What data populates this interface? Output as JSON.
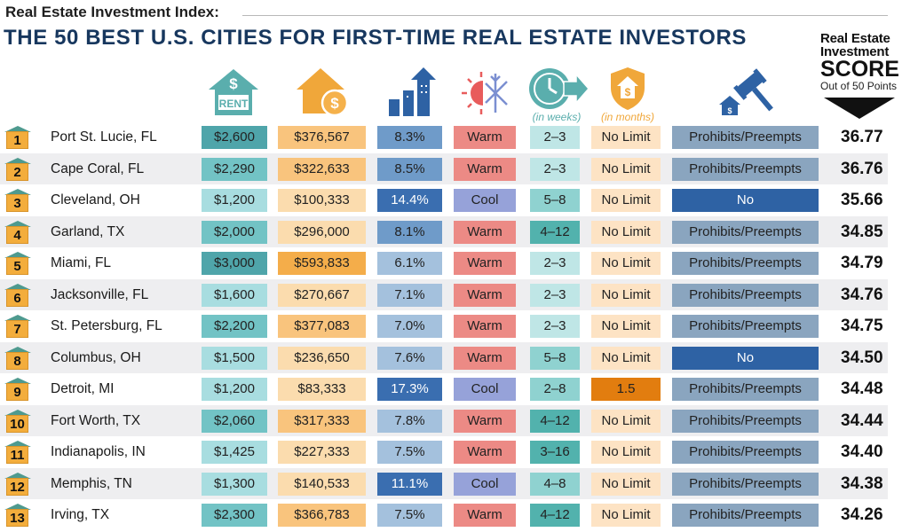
{
  "header": {
    "kicker": "Real Estate Investment Index:",
    "title": "THE 50 BEST U.S. CITIES FOR FIRST-TIME REAL ESTATE INVESTORS",
    "score_line1": "Real Estate",
    "score_line2": "Investment",
    "score_line3": "SCORE",
    "score_line4": "Out of 50 Points",
    "weeks_label": "(in weeks)",
    "months_label": "(in months)"
  },
  "icons": {
    "rent_text": "RENT",
    "rent_sign": "$",
    "price_sign": "$"
  },
  "colors": {
    "rent_light": "#a8dde0",
    "rent_mid": "#72c3c5",
    "rent_dark": "#4fa5aa",
    "price_light": "#fbdcae",
    "price_mid": "#f9c47d",
    "price_dark": "#f4ad4a",
    "growth_light": "#a4c1dd",
    "growth_mid": "#6f9bc9",
    "growth_dark": "#3a6eb0",
    "warm": "#ec8a85",
    "cool": "#96a2d9",
    "weeks_light": "#bfe6e6",
    "weeks_mid": "#8fd2d0",
    "weeks_dark": "#52b2ad",
    "nolimit": "#fde3c4",
    "limit": "#e27d0f",
    "law_grey": "#8aa5bf",
    "law_no": "#2e62a4",
    "title": "#17375e"
  },
  "rows": [
    {
      "rank": "1",
      "city": "Port St. Lucie, FL",
      "rent": "$2,600",
      "price": "$376,567",
      "growth": "8.3%",
      "climate": "Warm",
      "weeks": "2–3",
      "months": "No Limit",
      "law": "Prohibits/Preempts",
      "score": "36.77"
    },
    {
      "rank": "2",
      "city": "Cape Coral, FL",
      "rent": "$2,290",
      "price": "$322,633",
      "growth": "8.5%",
      "climate": "Warm",
      "weeks": "2–3",
      "months": "No Limit",
      "law": "Prohibits/Preempts",
      "score": "36.76"
    },
    {
      "rank": "3",
      "city": "Cleveland, OH",
      "rent": "$1,200",
      "price": "$100,333",
      "growth": "14.4%",
      "climate": "Cool",
      "weeks": "5–8",
      "months": "No Limit",
      "law": "No",
      "score": "35.66"
    },
    {
      "rank": "4",
      "city": "Garland, TX",
      "rent": "$2,000",
      "price": "$296,000",
      "growth": "8.1%",
      "climate": "Warm",
      "weeks": "4–12",
      "months": "No Limit",
      "law": "Prohibits/Preempts",
      "score": "34.85"
    },
    {
      "rank": "5",
      "city": "Miami, FL",
      "rent": "$3,000",
      "price": "$593,833",
      "growth": "6.1%",
      "climate": "Warm",
      "weeks": "2–3",
      "months": "No Limit",
      "law": "Prohibits/Preempts",
      "score": "34.79"
    },
    {
      "rank": "6",
      "city": "Jacksonville, FL",
      "rent": "$1,600",
      "price": "$270,667",
      "growth": "7.1%",
      "climate": "Warm",
      "weeks": "2–3",
      "months": "No Limit",
      "law": "Prohibits/Preempts",
      "score": "34.76"
    },
    {
      "rank": "7",
      "city": "St. Petersburg, FL",
      "rent": "$2,200",
      "price": "$377,083",
      "growth": "7.0%",
      "climate": "Warm",
      "weeks": "2–3",
      "months": "No Limit",
      "law": "Prohibits/Preempts",
      "score": "34.75"
    },
    {
      "rank": "8",
      "city": "Columbus, OH",
      "rent": "$1,500",
      "price": "$236,650",
      "growth": "7.6%",
      "climate": "Warm",
      "weeks": "5–8",
      "months": "No Limit",
      "law": "No",
      "score": "34.50"
    },
    {
      "rank": "9",
      "city": "Detroit, MI",
      "rent": "$1,200",
      "price": "$83,333",
      "growth": "17.3%",
      "climate": "Cool",
      "weeks": "2–8",
      "months": "1.5",
      "law": "Prohibits/Preempts",
      "score": "34.48"
    },
    {
      "rank": "10",
      "city": "Fort Worth, TX",
      "rent": "$2,060",
      "price": "$317,333",
      "growth": "7.8%",
      "climate": "Warm",
      "weeks": "4–12",
      "months": "No Limit",
      "law": "Prohibits/Preempts",
      "score": "34.44"
    },
    {
      "rank": "11",
      "city": "Indianapolis, IN",
      "rent": "$1,425",
      "price": "$227,333",
      "growth": "7.5%",
      "climate": "Warm",
      "weeks": "3–16",
      "months": "No Limit",
      "law": "Prohibits/Preempts",
      "score": "34.40"
    },
    {
      "rank": "12",
      "city": "Memphis, TN",
      "rent": "$1,300",
      "price": "$140,533",
      "growth": "11.1%",
      "climate": "Cool",
      "weeks": "4–8",
      "months": "No Limit",
      "law": "Prohibits/Preempts",
      "score": "34.38"
    },
    {
      "rank": "13",
      "city": "Irving, TX",
      "rent": "$2,300",
      "price": "$366,783",
      "growth": "7.5%",
      "climate": "Warm",
      "weeks": "4–12",
      "months": "No Limit",
      "law": "Prohibits/Preempts",
      "score": "34.26"
    }
  ]
}
